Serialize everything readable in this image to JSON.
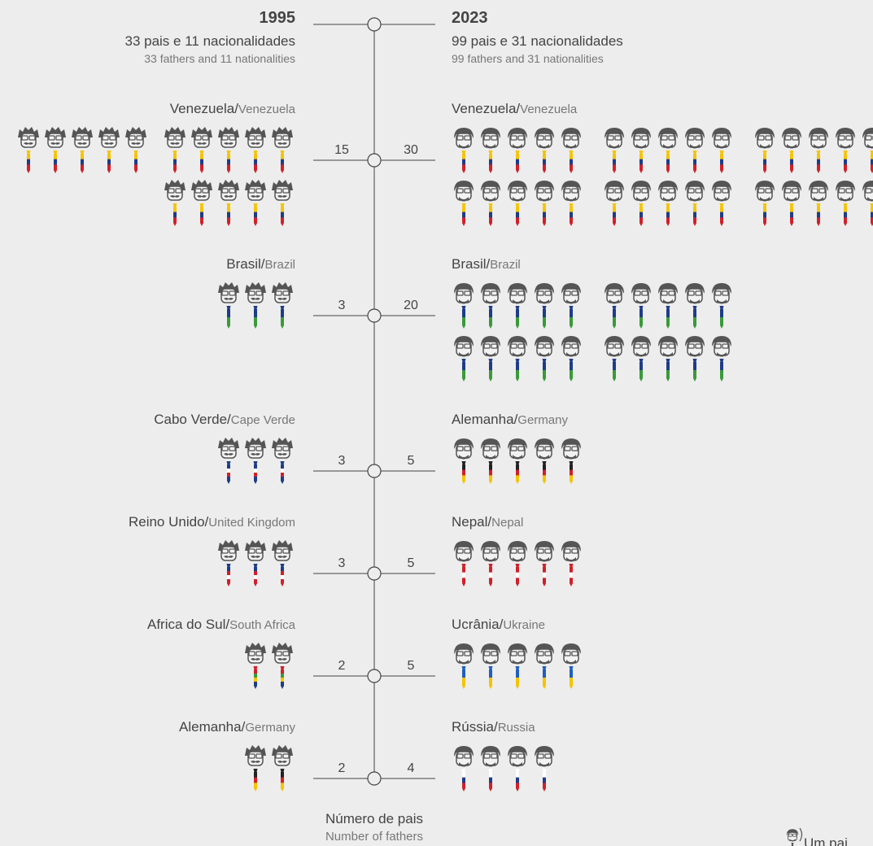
{
  "chart_data": {
    "type": "pictogram",
    "separator": "/",
    "left": {
      "year": "1995",
      "subtitle": "33 pais e 11 nacionalidades",
      "subtitle_en": "33 fathers and 11 nationalities",
      "rows": [
        {
          "name": "Venezuela",
          "name_en": "Venezuela",
          "value": 15,
          "colors": [
            "#f5c400",
            "#1f3c88",
            "#d0202a"
          ]
        },
        {
          "name": "Brasil",
          "name_en": "Brazil",
          "value": 3,
          "colors": [
            "#1f3c88",
            "#3a9a3a"
          ]
        },
        {
          "name": "Cabo Verde",
          "name_en": "Cape Verde",
          "value": 3,
          "colors": [
            "#1f3c88",
            "#ffffff",
            "#d0202a",
            "#1f3c88"
          ]
        },
        {
          "name": "Reino Unido",
          "name_en": "United Kingdom",
          "value": 3,
          "colors": [
            "#1f3c88",
            "#d0202a",
            "#ffffff",
            "#d0202a"
          ]
        },
        {
          "name": "Africa do Sul",
          "name_en": "South Africa",
          "value": 2,
          "colors": [
            "#d0202a",
            "#3a9a3a",
            "#f5c400",
            "#1f3c88"
          ]
        },
        {
          "name": "Alemanha",
          "name_en": "Germany",
          "value": 2,
          "colors": [
            "#222222",
            "#d0202a",
            "#f5c400"
          ]
        }
      ]
    },
    "right": {
      "year": "2023",
      "subtitle": "99 pais e 31 nacionalidades",
      "subtitle_en": "99 fathers and 31 nationalities",
      "rows": [
        {
          "name": "Venezuela",
          "name_en": "Venezuela",
          "value": 30,
          "colors": [
            "#f5c400",
            "#1f3c88",
            "#d0202a"
          ]
        },
        {
          "name": "Brasil",
          "name_en": "Brazil",
          "value": 20,
          "colors": [
            "#1f3c88",
            "#3a9a3a"
          ]
        },
        {
          "name": "Alemanha",
          "name_en": "Germany",
          "value": 5,
          "colors": [
            "#222222",
            "#d0202a",
            "#f5c400"
          ]
        },
        {
          "name": "Nepal",
          "name_en": "Nepal",
          "value": 5,
          "colors": [
            "#d0202a",
            "#ffffff",
            "#d0202a"
          ]
        },
        {
          "name": "Ucrânia",
          "name_en": "Ukraine",
          "value": 5,
          "colors": [
            "#1f5fbf",
            "#f5c400"
          ]
        },
        {
          "name": "Rússia",
          "name_en": "Russia",
          "value": 4,
          "colors": [
            "#ffffff",
            "#1f3c88",
            "#d0202a"
          ]
        }
      ]
    },
    "axis_label": "Número de pais",
    "axis_label_en": "Number of fathers",
    "legend": "Um pai"
  }
}
